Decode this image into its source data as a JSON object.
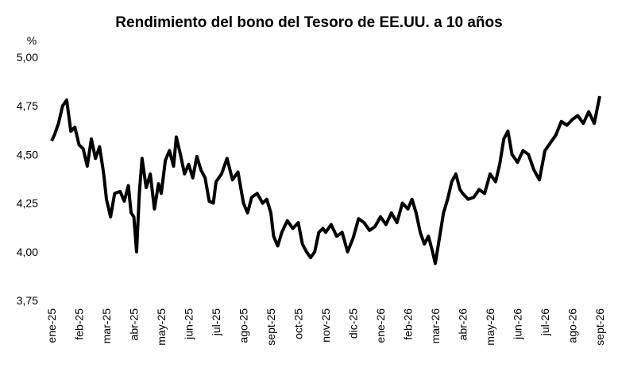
{
  "chart_data": {
    "type": "line",
    "title": "Rendimiento del bono del Tesoro de EE.UU. a 10 años",
    "y_unit": "%",
    "series": [
      {
        "name": "Rendimiento",
        "color": "#000000",
        "x": [
          0,
          0.1,
          0.25,
          0.4,
          0.55,
          0.7,
          0.85,
          1.0,
          1.15,
          1.3,
          1.45,
          1.6,
          1.75,
          1.9,
          2.0,
          2.15,
          2.3,
          2.5,
          2.65,
          2.8,
          2.9,
          3.0,
          3.1,
          3.2,
          3.3,
          3.45,
          3.6,
          3.75,
          3.9,
          4.0,
          4.15,
          4.3,
          4.45,
          4.55,
          4.7,
          4.85,
          5.0,
          5.15,
          5.3,
          5.45,
          5.6,
          5.75,
          5.9,
          6.0,
          6.2,
          6.4,
          6.6,
          6.8,
          7.0,
          7.15,
          7.3,
          7.5,
          7.7,
          7.85,
          8.0,
          8.1,
          8.25,
          8.4,
          8.6,
          8.8,
          9.0,
          9.15,
          9.3,
          9.45,
          9.6,
          9.75,
          9.9,
          10.0,
          10.2,
          10.4,
          10.6,
          10.8,
          11.0,
          11.2,
          11.4,
          11.6,
          11.8,
          12.0,
          12.2,
          12.4,
          12.6,
          12.8,
          13.0,
          13.15,
          13.3,
          13.45,
          13.6,
          13.75,
          13.9,
          14.0,
          14.15,
          14.3,
          14.45,
          14.6,
          14.75,
          14.9,
          15.0,
          15.2,
          15.4,
          15.6,
          15.8,
          16.0,
          16.2,
          16.35,
          16.5,
          16.65,
          16.8,
          17.0,
          17.2,
          17.4,
          17.6,
          17.8,
          18.0,
          18.2,
          18.4,
          18.6,
          18.8,
          19.0,
          19.2,
          19.4,
          19.6,
          19.8,
          20.0
        ],
        "values": [
          4.57,
          4.6,
          4.66,
          4.75,
          4.78,
          4.62,
          4.64,
          4.55,
          4.53,
          4.44,
          4.58,
          4.48,
          4.54,
          4.4,
          4.27,
          4.18,
          4.3,
          4.31,
          4.26,
          4.34,
          4.2,
          4.18,
          4.0,
          4.3,
          4.48,
          4.33,
          4.4,
          4.22,
          4.35,
          4.3,
          4.47,
          4.52,
          4.44,
          4.59,
          4.5,
          4.4,
          4.45,
          4.38,
          4.49,
          4.42,
          4.38,
          4.26,
          4.25,
          4.36,
          4.4,
          4.48,
          4.37,
          4.41,
          4.25,
          4.2,
          4.28,
          4.3,
          4.25,
          4.27,
          4.2,
          4.08,
          4.03,
          4.1,
          4.16,
          4.12,
          4.15,
          4.04,
          4.0,
          3.97,
          4.0,
          4.1,
          4.12,
          4.1,
          4.14,
          4.08,
          4.1,
          4.0,
          4.07,
          4.17,
          4.15,
          4.11,
          4.13,
          4.18,
          4.14,
          4.2,
          4.15,
          4.25,
          4.22,
          4.27,
          4.2,
          4.1,
          4.04,
          4.08,
          4.0,
          3.94,
          4.07,
          4.2,
          4.27,
          4.36,
          4.4,
          4.32,
          4.3,
          4.27,
          4.28,
          4.32,
          4.3,
          4.4,
          4.36,
          4.45,
          4.58,
          4.62,
          4.5,
          4.46,
          4.52,
          4.5,
          4.42,
          4.37,
          4.52,
          4.56,
          4.6,
          4.67,
          4.65,
          4.68,
          4.7,
          4.66,
          4.72,
          4.66,
          4.8
        ]
      }
    ],
    "xlim": [
      0,
      20
    ],
    "xticks": [
      {
        "value": 0,
        "label": "ene-25"
      },
      {
        "value": 1,
        "label": "feb-25"
      },
      {
        "value": 2,
        "label": "mar-25"
      },
      {
        "value": 3,
        "label": "abr-25"
      },
      {
        "value": 4,
        "label": "may-25"
      },
      {
        "value": 5,
        "label": "jun-25"
      },
      {
        "value": 6,
        "label": "jul-25"
      },
      {
        "value": 7,
        "label": "ago-25"
      },
      {
        "value": 8,
        "label": "sept-25"
      },
      {
        "value": 9,
        "label": "oct-25"
      },
      {
        "value": 10,
        "label": "nov-25"
      },
      {
        "value": 11,
        "label": "dic-25"
      },
      {
        "value": 12,
        "label": "ene-26"
      },
      {
        "value": 13,
        "label": "feb-26"
      },
      {
        "value": 14,
        "label": "mar-26"
      },
      {
        "value": 15,
        "label": "abr-26"
      },
      {
        "value": 16,
        "label": "may-26"
      },
      {
        "value": 17,
        "label": "jun-26"
      },
      {
        "value": 18,
        "label": "jul-26"
      },
      {
        "value": 19,
        "label": "ago-26"
      },
      {
        "value": 20,
        "label": "sept-26"
      }
    ],
    "ylim": [
      3.75,
      5.0
    ],
    "yticks": [
      {
        "value": 3.75,
        "label": "3,75"
      },
      {
        "value": 4.0,
        "label": "4,00"
      },
      {
        "value": 4.25,
        "label": "4,25"
      },
      {
        "value": 4.5,
        "label": "4,50"
      },
      {
        "value": 4.75,
        "label": "4,75"
      },
      {
        "value": 5.0,
        "label": "5,00"
      }
    ],
    "grid": false
  }
}
